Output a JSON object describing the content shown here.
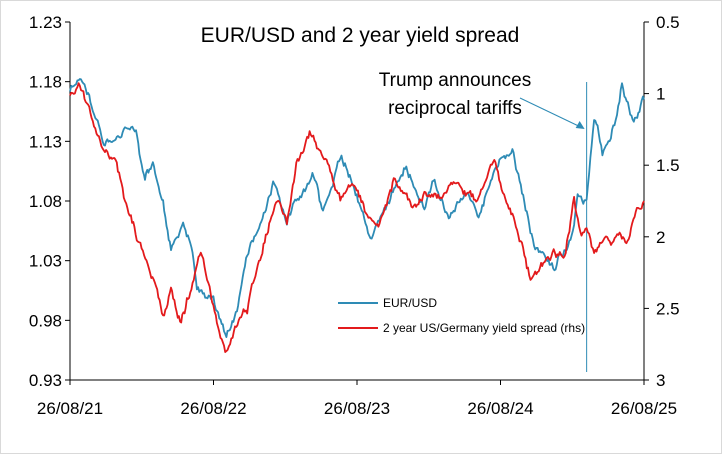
{
  "chart_data": {
    "type": "line",
    "title": "EUR/USD and 2 year yield spread",
    "x_tick_labels": [
      "26/08/21",
      "26/08/22",
      "26/08/23",
      "26/08/24",
      "26/08/25"
    ],
    "x_range": [
      "2021-08-26",
      "2025-08-26"
    ],
    "y_left": {
      "lim": [
        0.93,
        1.23
      ],
      "ticks": [
        "1.23",
        "1.18",
        "1.13",
        "1.08",
        "1.03",
        "0.98",
        "0.93"
      ]
    },
    "y_right": {
      "lim": [
        0.5,
        3
      ],
      "inverted": true,
      "ticks": [
        "0.5",
        "1",
        "1.5",
        "2",
        "2.5",
        "3"
      ]
    },
    "grid": false,
    "legend": {
      "placement": "bottom-center"
    },
    "series": [
      {
        "name": "EUR/USD",
        "axis": "left",
        "color": "#2e8bb5",
        "points": [
          [
            "2021-08-26",
            1.175
          ],
          [
            "2021-09-20",
            1.18
          ],
          [
            "2021-10-20",
            1.16
          ],
          [
            "2021-11-20",
            1.13
          ],
          [
            "2021-12-20",
            1.13
          ],
          [
            "2022-01-10",
            1.14
          ],
          [
            "2022-02-10",
            1.135
          ],
          [
            "2022-03-05",
            1.095
          ],
          [
            "2022-03-25",
            1.11
          ],
          [
            "2022-04-20",
            1.08
          ],
          [
            "2022-05-10",
            1.04
          ],
          [
            "2022-06-10",
            1.06
          ],
          [
            "2022-07-01",
            1.04
          ],
          [
            "2022-07-15",
            1.005
          ],
          [
            "2022-08-26",
            0.995
          ],
          [
            "2022-09-28",
            0.965
          ],
          [
            "2022-10-25",
            0.985
          ],
          [
            "2022-11-20",
            1.035
          ],
          [
            "2022-12-20",
            1.06
          ],
          [
            "2023-01-25",
            1.09
          ],
          [
            "2023-03-01",
            1.06
          ],
          [
            "2023-03-25",
            1.08
          ],
          [
            "2023-05-05",
            1.105
          ],
          [
            "2023-06-01",
            1.07
          ],
          [
            "2023-07-18",
            1.12
          ],
          [
            "2023-08-26",
            1.085
          ],
          [
            "2023-10-03",
            1.05
          ],
          [
            "2023-11-01",
            1.065
          ],
          [
            "2023-12-27",
            1.11
          ],
          [
            "2024-02-14",
            1.07
          ],
          [
            "2024-03-08",
            1.095
          ],
          [
            "2024-04-16",
            1.065
          ],
          [
            "2024-06-01",
            1.09
          ],
          [
            "2024-07-01",
            1.07
          ],
          [
            "2024-08-26",
            1.115
          ],
          [
            "2024-09-25",
            1.12
          ],
          [
            "2024-11-22",
            1.04
          ],
          [
            "2025-01-13",
            1.025
          ],
          [
            "2025-02-20",
            1.05
          ],
          [
            "2025-03-10",
            1.085
          ],
          [
            "2025-04-02",
            1.08
          ],
          [
            "2025-04-21",
            1.15
          ],
          [
            "2025-05-12",
            1.12
          ],
          [
            "2025-06-15",
            1.15
          ],
          [
            "2025-07-01",
            1.18
          ],
          [
            "2025-07-31",
            1.145
          ],
          [
            "2025-08-26",
            1.165
          ]
        ]
      },
      {
        "name": "2 year US/Germany yield spread (rhs)",
        "axis": "right",
        "color": "#e31a1c",
        "points": [
          [
            "2021-08-26",
            1.0
          ],
          [
            "2021-09-20",
            0.95
          ],
          [
            "2021-10-20",
            1.15
          ],
          [
            "2021-11-20",
            1.4
          ],
          [
            "2021-12-20",
            1.45
          ],
          [
            "2022-01-10",
            1.7
          ],
          [
            "2022-02-15",
            2.05
          ],
          [
            "2022-03-15",
            2.2
          ],
          [
            "2022-04-20",
            2.55
          ],
          [
            "2022-05-10",
            2.4
          ],
          [
            "2022-06-05",
            2.6
          ],
          [
            "2022-07-01",
            2.35
          ],
          [
            "2022-07-25",
            2.1
          ],
          [
            "2022-08-26",
            2.5
          ],
          [
            "2022-09-25",
            2.8
          ],
          [
            "2022-10-20",
            2.65
          ],
          [
            "2022-11-20",
            2.5
          ],
          [
            "2022-12-20",
            2.2
          ],
          [
            "2023-01-15",
            1.9
          ],
          [
            "2023-02-10",
            1.75
          ],
          [
            "2023-03-01",
            1.9
          ],
          [
            "2023-03-25",
            1.5
          ],
          [
            "2023-05-01",
            1.3
          ],
          [
            "2023-06-10",
            1.5
          ],
          [
            "2023-07-15",
            1.75
          ],
          [
            "2023-08-20",
            1.65
          ],
          [
            "2023-09-15",
            1.8
          ],
          [
            "2023-10-20",
            1.9
          ],
          [
            "2023-12-01",
            1.6
          ],
          [
            "2024-01-15",
            1.8
          ],
          [
            "2024-02-20",
            1.7
          ],
          [
            "2024-03-20",
            1.75
          ],
          [
            "2024-04-25",
            1.6
          ],
          [
            "2024-05-20",
            1.65
          ],
          [
            "2024-06-25",
            1.75
          ],
          [
            "2024-08-10",
            1.45
          ],
          [
            "2024-09-10",
            1.75
          ],
          [
            "2024-10-10",
            1.95
          ],
          [
            "2024-11-10",
            2.3
          ],
          [
            "2024-12-10",
            2.2
          ],
          [
            "2025-01-05",
            2.1
          ],
          [
            "2025-02-05",
            2.15
          ],
          [
            "2025-03-01",
            1.75
          ],
          [
            "2025-03-20",
            2.0
          ],
          [
            "2025-04-02",
            1.95
          ],
          [
            "2025-04-21",
            2.1
          ],
          [
            "2025-05-15",
            2.05
          ],
          [
            "2025-06-25",
            2.0
          ],
          [
            "2025-07-15",
            2.05
          ],
          [
            "2025-08-05",
            1.8
          ],
          [
            "2025-08-26",
            1.75
          ]
        ]
      }
    ],
    "annotations": [
      {
        "text": [
          "Trump announces",
          "reciprocal tariffs"
        ],
        "date": "2025-04-02"
      }
    ]
  },
  "colors": {
    "axis": "#000000",
    "frame_border": "#d9d9d9",
    "annotation_line": "#2e8bb5"
  }
}
